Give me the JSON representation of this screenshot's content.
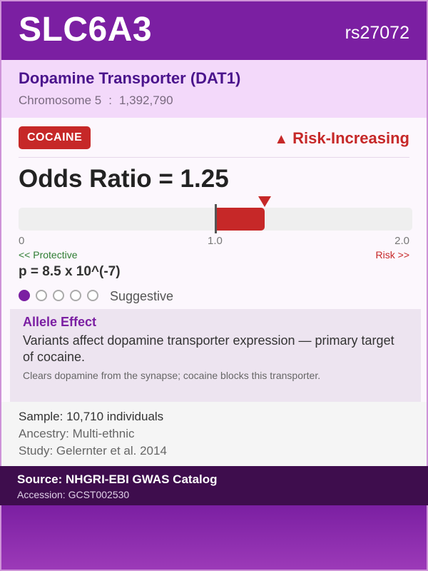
{
  "header": {
    "gene": "SLC6A3",
    "rsid": "rs27072"
  },
  "subheader": {
    "protein": "Dopamine Transporter (DAT1)",
    "chromosome": "Chromosome 5",
    "separator": ":",
    "position": "1,392,790"
  },
  "trait": {
    "badge": "COCAINE",
    "effect_direction": "Risk-Increasing",
    "effect_icon": "warning-triangle-icon"
  },
  "odds_ratio": {
    "text": "Odds Ratio = 1.25",
    "value": 1.25,
    "scale_min": 0,
    "scale_center": 1.0,
    "scale_max": 2.0,
    "tick_min": "0",
    "tick_center": "1.0",
    "tick_max": "2.0",
    "protective_label": "<< Protective",
    "risk_label": "Risk >>"
  },
  "pvalue": {
    "text": "p = 8.5 x 10^(-7)"
  },
  "significance": {
    "level": 1,
    "max": 5,
    "label": "Suggestive"
  },
  "allele_effect": {
    "title": "Allele Effect",
    "description": "Variants affect dopamine transporter expression — primary target of cocaine.",
    "note": "Clears dopamine from the synapse; cocaine blocks this transporter."
  },
  "study": {
    "sample": "Sample: 10,710 individuals",
    "ancestry": "Ancestry: Multi-ethnic",
    "reference": "Study: Gelernter et al. 2014"
  },
  "source": {
    "title": "Source: NHGRI-EBI GWAS Catalog",
    "accession": "Accession: GCST002530"
  },
  "colors": {
    "primary": "#7b1fa2",
    "risk": "#c62828",
    "protective": "#2e7d32",
    "dark": "#3e0d4d"
  }
}
